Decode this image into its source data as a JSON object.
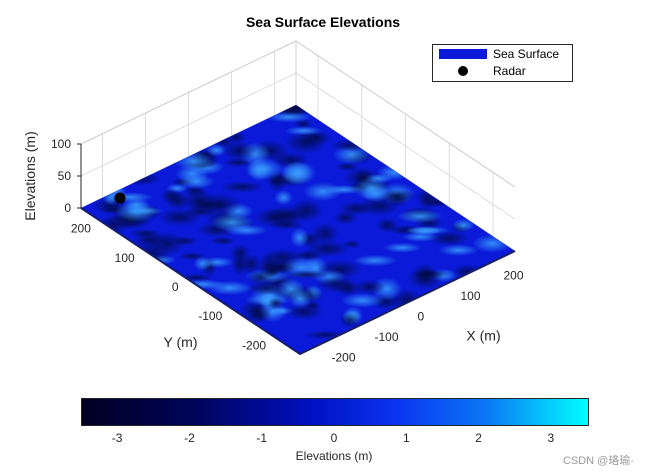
{
  "chart_data": {
    "type": "surface3d",
    "title": "Sea Surface Elevations",
    "xlabel": "X (m)",
    "ylabel": "Y (m)",
    "zlabel": "Elevations (m)",
    "xlim": [
      -250,
      250
    ],
    "ylim": [
      -250,
      250
    ],
    "zlim": [
      0,
      100
    ],
    "x_ticks": [
      -200,
      -100,
      0,
      100,
      200
    ],
    "y_ticks": [
      -200,
      -100,
      0,
      100,
      200
    ],
    "z_ticks": [
      0,
      50,
      100
    ],
    "grid": true,
    "legend": {
      "position": "top-right",
      "entries": [
        "Sea Surface",
        "Radar"
      ]
    },
    "colors": {
      "surface": "#0a1ad8",
      "radar": "#000000"
    },
    "radar_point": {
      "x": -250,
      "y": 250,
      "z": 10
    },
    "colorbar": {
      "label": "Elevations (m)",
      "range": [
        -3.5,
        3.5
      ],
      "ticks": [
        -3,
        -2,
        -1,
        0,
        1,
        2,
        3
      ],
      "colormap": [
        "#000022",
        "#00045a",
        "#0010c0",
        "#0a34f0",
        "#0a78f4",
        "#00ffff"
      ]
    }
  },
  "watermark": "CSDN @珞瑜·"
}
